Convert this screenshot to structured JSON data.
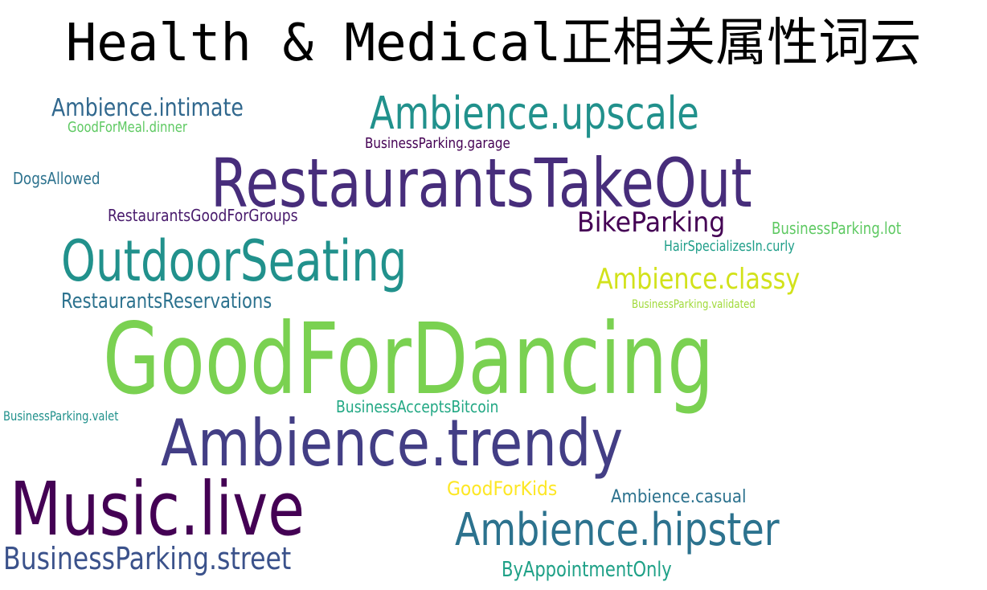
{
  "title": "Health & Medical正相关属性词云",
  "words": [
    {
      "text": "GoodForDancing",
      "color": "#7ad151"
    },
    {
      "text": "RestaurantsTakeOut",
      "color": "#472d7b"
    },
    {
      "text": "Ambience.trendy",
      "color": "#433e85"
    },
    {
      "text": "Music.live",
      "color": "#440154"
    },
    {
      "text": "OutdoorSeating",
      "color": "#21918c"
    },
    {
      "text": "Ambience.upscale",
      "color": "#21918c"
    },
    {
      "text": "Ambience.hipster",
      "color": "#2c728e"
    },
    {
      "text": "BusinessParking.street",
      "color": "#3b528b"
    },
    {
      "text": "Ambience.classy",
      "color": "#d2e21b"
    },
    {
      "text": "BikeParking",
      "color": "#440154"
    },
    {
      "text": "Ambience.intimate",
      "color": "#31688e"
    },
    {
      "text": "RestaurantsReservations",
      "color": "#2c728e"
    },
    {
      "text": "ByAppointmentOnly",
      "color": "#1fa187"
    },
    {
      "text": "GoodForKids",
      "color": "#fde725"
    },
    {
      "text": "Ambience.casual",
      "color": "#2c728e"
    },
    {
      "text": "RestaurantsGoodForGroups",
      "color": "#481a6c"
    },
    {
      "text": "BusinessParking.lot",
      "color": "#5ec962"
    },
    {
      "text": "BusinessAcceptsBitcoin",
      "color": "#22a884"
    },
    {
      "text": "BusinessParking.garage",
      "color": "#440154"
    },
    {
      "text": "DogsAllowed",
      "color": "#2c728e"
    },
    {
      "text": "GoodForMeal.dinner",
      "color": "#5ec962"
    },
    {
      "text": "HairSpecializesIn.curly",
      "color": "#1f9e89"
    },
    {
      "text": "BusinessParking.valet",
      "color": "#21918c"
    },
    {
      "text": "BusinessParking.validated",
      "color": "#a0da39"
    }
  ]
}
